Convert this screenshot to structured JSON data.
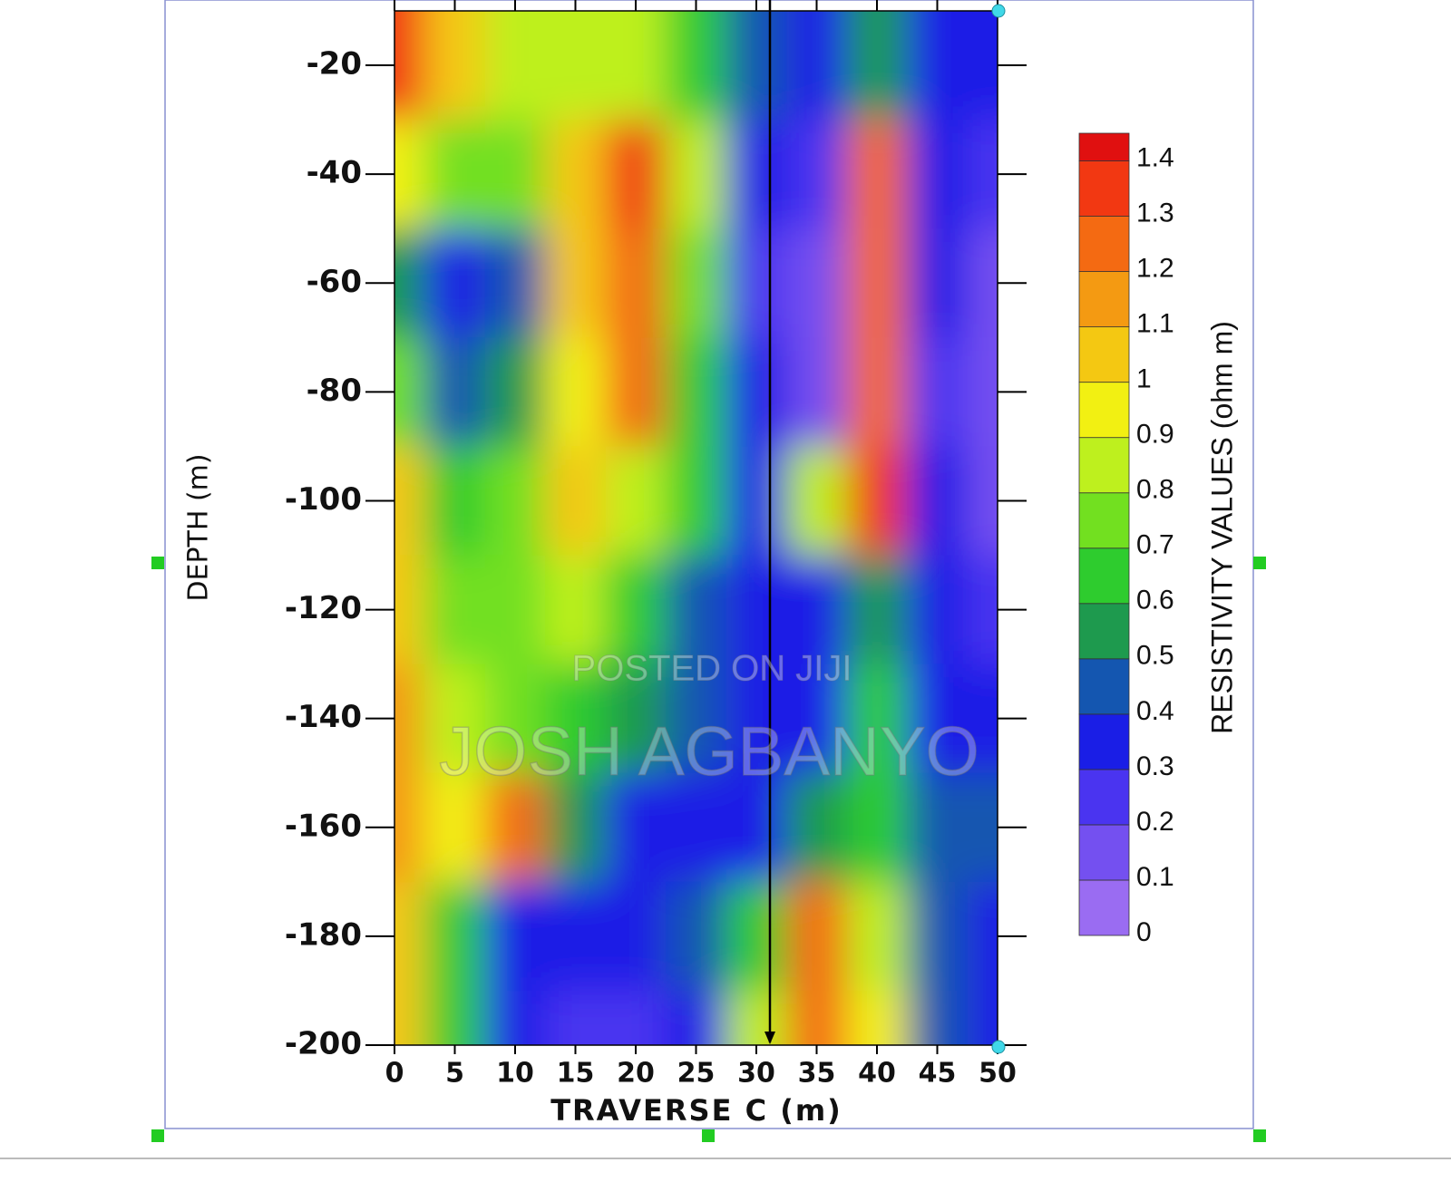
{
  "chart_data": {
    "type": "contour",
    "x_label": "TRAVERSE C (m)",
    "y_label": "DEPTH (m)",
    "colorbar_label": "RESISTIVITY VALUES (ohm m)",
    "watermarks": [
      "POSTED ON JIJI",
      "JOSH AGBANYO"
    ],
    "x": [
      0,
      5,
      10,
      15,
      20,
      25,
      30,
      35,
      40,
      45,
      50
    ],
    "y": [
      -20,
      -40,
      -60,
      -80,
      -100,
      -120,
      -140,
      -160,
      -180,
      -200
    ],
    "z": [
      [
        1.3,
        1.0,
        0.8,
        0.8,
        0.8,
        0.6,
        0.4,
        0.3,
        0.5,
        0.3,
        0.3
      ],
      [
        0.9,
        0.7,
        0.7,
        1.0,
        1.3,
        0.8,
        0.3,
        0.2,
        1.2,
        0.3,
        0.2
      ],
      [
        0.5,
        0.3,
        0.4,
        1.0,
        1.2,
        0.7,
        0.2,
        0.1,
        1.2,
        0.3,
        0.1
      ],
      [
        0.7,
        0.4,
        0.5,
        0.9,
        1.2,
        0.6,
        0.3,
        0.1,
        1.2,
        0.2,
        0.1
      ],
      [
        1.0,
        0.6,
        0.7,
        1.0,
        0.8,
        0.6,
        0.3,
        0.8,
        1.3,
        0.3,
        0.1
      ],
      [
        1.0,
        0.7,
        0.7,
        0.8,
        0.6,
        0.4,
        0.3,
        0.3,
        0.5,
        0.3,
        0.2
      ],
      [
        1.1,
        0.8,
        0.7,
        0.6,
        0.5,
        0.4,
        0.3,
        0.3,
        0.6,
        0.3,
        0.3
      ],
      [
        1.1,
        0.9,
        1.2,
        0.5,
        0.3,
        0.3,
        0.3,
        0.5,
        0.6,
        0.4,
        0.4
      ],
      [
        1.0,
        0.6,
        0.3,
        0.3,
        0.3,
        0.4,
        0.6,
        1.2,
        0.8,
        0.4,
        0.3
      ],
      [
        1.0,
        0.6,
        0.3,
        0.2,
        0.2,
        0.3,
        0.8,
        1.2,
        0.9,
        0.4,
        0.3
      ]
    ],
    "xlim": [
      0,
      50
    ],
    "ylim": [
      -200,
      -10
    ],
    "xticks": [
      0,
      5,
      10,
      15,
      20,
      25,
      30,
      35,
      40,
      45,
      50
    ],
    "yticks": [
      -20,
      -40,
      -60,
      -80,
      -100,
      -120,
      -140,
      -160,
      -180,
      -200
    ],
    "zlim": [
      0,
      1.45
    ],
    "zticks": [
      0,
      0.1,
      0.2,
      0.3,
      0.4,
      0.5,
      0.6,
      0.7,
      0.8,
      0.9,
      1,
      1.1,
      1.2,
      1.3,
      1.4
    ],
    "colorscale": [
      "#9a6cf2",
      "#7450f0",
      "#4a34f0",
      "#1a1ee6",
      "#1456b0",
      "#1e9a4e",
      "#2ecc2e",
      "#72e020",
      "#bef01e",
      "#f2f012",
      "#f4c812",
      "#f49a12",
      "#f46a12",
      "#f23812",
      "#e01010"
    ]
  }
}
